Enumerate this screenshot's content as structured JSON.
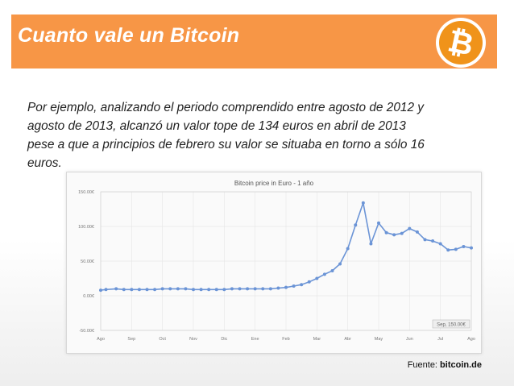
{
  "header": {
    "title": "Cuanto vale un Bitcoin",
    "logo_icon": "bitcoin-logo-icon",
    "logo_symbol": "₿",
    "bar_color": "#f79646",
    "logo_color": "#f0931a"
  },
  "body": {
    "lines": [
      "Por ejemplo, analizando el periodo comprendido entre agosto de 2012 y",
      "agosto de 2013, alcanzó un valor tope de 134 euros en abril de 2013",
      "pese a que a principios de febrero su valor se situaba en torno a sólo 16",
      "euros."
    ]
  },
  "chart_data": {
    "type": "line",
    "title": "Bitcoin price in Euro - 1 año",
    "xlabel": "",
    "ylabel": "",
    "categories": [
      "Ago",
      "Sep",
      "Oct",
      "Nov",
      "Dic",
      "Ene",
      "Feb",
      "Mar",
      "Abr",
      "May",
      "Jun",
      "Jul",
      "Ago"
    ],
    "yticks": [
      "150.00€",
      "100.00€",
      "50.00€",
      "0.00€",
      "-50.00€"
    ],
    "ytick_values": [
      150,
      100,
      50,
      0,
      -50
    ],
    "ylim": [
      -50,
      150
    ],
    "xlim": [
      0,
      12
    ],
    "grid": true,
    "line_color": "#6b94d6",
    "tooltip": "Sep, 150.00€",
    "series": [
      {
        "x": [
          0,
          0.17,
          0.5,
          0.75,
          1,
          1.25,
          1.5,
          1.75,
          2,
          2.25,
          2.5,
          2.75,
          3,
          3.25,
          3.5,
          3.75,
          4,
          4.25,
          4.5,
          4.75,
          5,
          5.25,
          5.5,
          5.75,
          6,
          6.25,
          6.5,
          6.75,
          7,
          7.25,
          7.5,
          7.75,
          8,
          8.25,
          8.5,
          8.75,
          9,
          9.25,
          9.5,
          9.75,
          10,
          10.25,
          10.5,
          10.75,
          11,
          11.25,
          11.5,
          11.75,
          12
        ],
        "values": [
          8,
          9,
          10,
          9,
          9,
          9,
          9,
          9,
          10,
          10,
          10,
          10,
          9,
          9,
          9,
          9,
          9,
          10,
          10,
          10,
          10,
          10,
          10,
          11,
          12,
          14,
          16,
          20,
          25,
          31,
          36,
          46,
          68,
          102,
          134,
          75,
          105,
          91,
          88,
          90,
          97,
          92,
          81,
          79,
          75,
          66,
          67,
          71,
          69
        ]
      }
    ]
  },
  "source": {
    "label": "Fuente: ",
    "site": "bitcoin.de"
  }
}
